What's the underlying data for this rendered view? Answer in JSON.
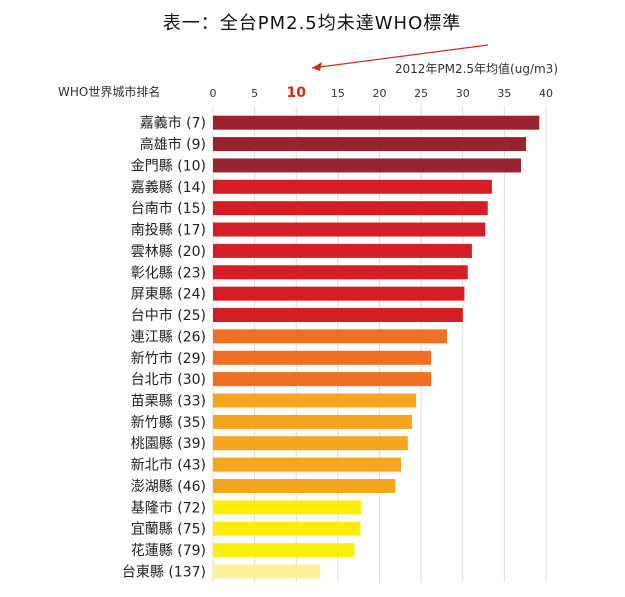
{
  "chart_data": {
    "type": "bar",
    "orientation": "horizontal",
    "title": "表一：全台PM2.5均未達WHO標準",
    "xlabel": "2012年PM2.5年均值(ug/m3)",
    "ylabel": "WHO世界城市排名",
    "xlim": [
      0,
      40
    ],
    "xticks": [
      0,
      5,
      10,
      15,
      20,
      25,
      30,
      35,
      40
    ],
    "highlight_tick": 10,
    "grid": "vertical",
    "categories": [
      "嘉義市 (7)",
      "高雄市 (9)",
      "金門縣 (10)",
      "嘉義縣 (14)",
      "台南市 (15)",
      "南投縣 (17)",
      "雲林縣 (20)",
      "彰化縣 (23)",
      "屏東縣 (24)",
      "台中市 (25)",
      "連江縣 (26)",
      "新竹市 (29)",
      "台北市 (30)",
      "苗栗縣 (33)",
      "新竹縣 (35)",
      "桃園縣 (39)",
      "新北市 (43)",
      "澎湖縣 (46)",
      "基隆市 (72)",
      "宜蘭縣 (75)",
      "花蓮縣 (79)",
      "台東縣 (137)"
    ],
    "values": [
      39.2,
      37.6,
      37.0,
      33.5,
      33.0,
      32.7,
      31.1,
      30.6,
      30.2,
      30.0,
      28.1,
      26.2,
      26.2,
      24.4,
      23.9,
      23.4,
      22.6,
      21.9,
      17.8,
      17.7,
      17.0,
      12.9
    ],
    "colors": [
      "#9b2330",
      "#9b2330",
      "#9b2330",
      "#d41e26",
      "#d41e26",
      "#d41e26",
      "#d41e26",
      "#d41e26",
      "#d41e26",
      "#d41e26",
      "#ef7023",
      "#ef7023",
      "#ef7023",
      "#f5a51e",
      "#f5a51e",
      "#f5a51e",
      "#f5a51e",
      "#f5a51e",
      "#fcee0a",
      "#fcee0a",
      "#fcee0a",
      "#fdf29a"
    ],
    "highlight_color": "#d42a1e"
  }
}
